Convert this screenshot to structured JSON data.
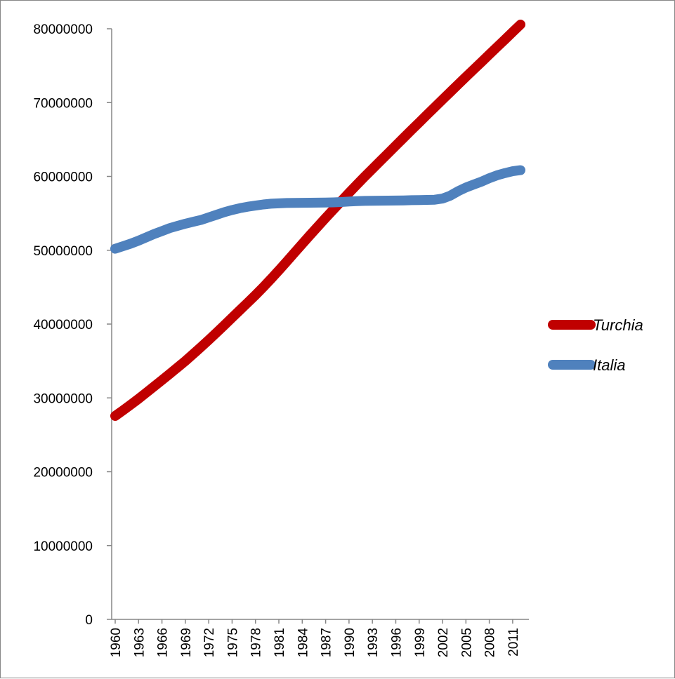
{
  "chart_data": {
    "type": "line",
    "title": "",
    "xlabel": "",
    "ylabel": "",
    "ylim": [
      0,
      80000000
    ],
    "y_ticks": [
      0,
      10000000,
      20000000,
      30000000,
      40000000,
      50000000,
      60000000,
      70000000,
      80000000
    ],
    "x_ticks": [
      1960,
      1963,
      1966,
      1969,
      1972,
      1975,
      1978,
      1981,
      1984,
      1987,
      1990,
      1993,
      1996,
      1999,
      2002,
      2005,
      2008,
      2011
    ],
    "x": [
      1960,
      1961,
      1962,
      1963,
      1964,
      1965,
      1966,
      1967,
      1968,
      1969,
      1970,
      1971,
      1972,
      1973,
      1974,
      1975,
      1976,
      1977,
      1978,
      1979,
      1980,
      1981,
      1982,
      1983,
      1984,
      1985,
      1986,
      1987,
      1988,
      1989,
      1990,
      1991,
      1992,
      1993,
      1994,
      1995,
      1996,
      1997,
      1998,
      1999,
      2000,
      2001,
      2002,
      2003,
      2004,
      2005,
      2006,
      2007,
      2008,
      2009,
      2010,
      2011,
      2012
    ],
    "grid": false,
    "legend_position": "right",
    "series": [
      {
        "name": "Turchia",
        "color": "#C00000",
        "values": [
          27550000,
          28300000,
          29080000,
          29880000,
          30720000,
          31560000,
          32410000,
          33260000,
          34130000,
          35000000,
          35930000,
          36880000,
          37850000,
          38840000,
          39840000,
          40860000,
          41880000,
          42900000,
          43920000,
          45000000,
          46120000,
          47280000,
          48460000,
          49660000,
          50860000,
          52050000,
          53220000,
          54380000,
          55520000,
          56650000,
          57780000,
          58880000,
          59960000,
          61020000,
          62070000,
          63120000,
          64170000,
          65230000,
          66280000,
          67310000,
          68340000,
          69370000,
          70400000,
          71430000,
          72460000,
          73480000,
          74490000,
          75500000,
          76520000,
          77530000,
          78540000,
          79560000,
          80570000
        ]
      },
      {
        "name": "Italia",
        "color": "#4F81BD",
        "values": [
          50200000,
          50550000,
          50900000,
          51300000,
          51750000,
          52200000,
          52600000,
          53000000,
          53300000,
          53600000,
          53850000,
          54100000,
          54450000,
          54800000,
          55150000,
          55450000,
          55700000,
          55900000,
          56050000,
          56200000,
          56300000,
          56350000,
          56400000,
          56420000,
          56430000,
          56440000,
          56450000,
          56460000,
          56480000,
          56530000,
          56600000,
          56650000,
          56680000,
          56700000,
          56710000,
          56720000,
          56730000,
          56750000,
          56780000,
          56800000,
          56820000,
          56850000,
          57000000,
          57400000,
          58000000,
          58500000,
          58900000,
          59300000,
          59750000,
          60150000,
          60450000,
          60700000,
          60850000
        ]
      }
    ]
  }
}
